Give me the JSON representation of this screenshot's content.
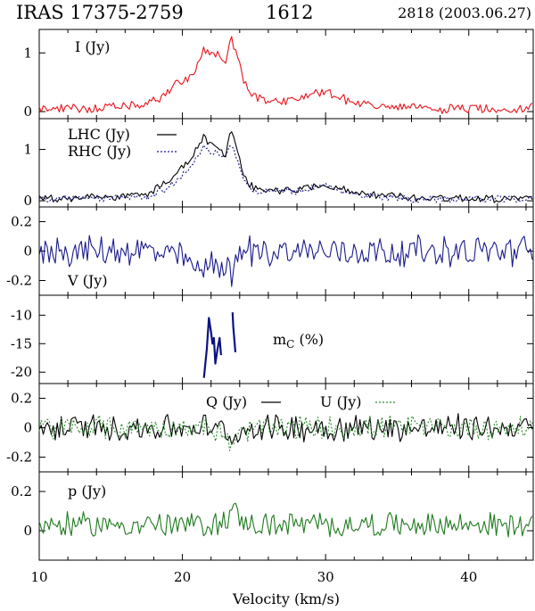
{
  "header": {
    "source": "IRAS 17375-2759",
    "frequency": "1612",
    "observation": "2818 (2003.06.27)"
  },
  "chart_data": {
    "type": "line",
    "xlabel": "Velocity (km/s)",
    "xlim": [
      10,
      44.5
    ],
    "xticks": [
      10,
      20,
      30,
      40
    ],
    "panels": [
      {
        "id": "stokes-i",
        "label": "I (Jy)",
        "ylim": [
          -0.12,
          1.4
        ],
        "yticks": [
          0,
          1
        ],
        "series": [
          {
            "label": "I (Jy)",
            "color": "#e8141c",
            "dashed": false,
            "x": [
              10.0,
              12.0,
              14.0,
              16.0,
              17.5,
              18.5,
              19.5,
              20.5,
              21.0,
              21.5,
              22.0,
              22.5,
              23.0,
              23.4,
              23.8,
              24.2,
              24.6,
              25.0,
              26.0,
              27.0,
              28.0,
              29.0,
              30.0,
              31.0,
              32.0,
              34.0,
              36.0,
              38.0,
              40.0,
              42.0,
              44.0,
              44.5
            ],
            "y": [
              0.05,
              0.05,
              0.06,
              0.08,
              0.12,
              0.25,
              0.45,
              0.6,
              0.75,
              1.05,
              0.98,
              0.95,
              0.85,
              1.25,
              0.95,
              0.6,
              0.35,
              0.25,
              0.2,
              0.18,
              0.22,
              0.3,
              0.35,
              0.25,
              0.15,
              0.08,
              0.06,
              0.05,
              0.05,
              0.05,
              0.05,
              0.1
            ]
          }
        ]
      },
      {
        "id": "circular-pol",
        "ylim": [
          -0.12,
          1.6
        ],
        "yticks": [
          0,
          1
        ],
        "legend": [
          {
            "label": "LHC (Jy)",
            "dashed": false,
            "color": "#000000"
          },
          {
            "label": "RHC (Jy)",
            "dashed": true,
            "color": "#1a1a8c"
          }
        ],
        "series": [
          {
            "label": "LHC (Jy)",
            "color": "#000000",
            "dashed": false,
            "x": [
              10.0,
              14.0,
              17.5,
              18.5,
              19.5,
              20.5,
              21.0,
              21.5,
              22.0,
              22.5,
              23.0,
              23.4,
              23.8,
              24.2,
              24.6,
              25.0,
              26.0,
              28.0,
              30.0,
              32.0,
              36.0,
              40.0,
              44.5
            ],
            "y": [
              0.05,
              0.06,
              0.12,
              0.3,
              0.5,
              0.8,
              1.0,
              1.25,
              1.1,
              1.0,
              0.85,
              1.4,
              1.0,
              0.55,
              0.3,
              0.25,
              0.22,
              0.22,
              0.32,
              0.15,
              0.06,
              0.05,
              0.05
            ]
          },
          {
            "label": "RHC (Jy)",
            "color": "#1a1a8c",
            "dashed": true,
            "x": [
              10.0,
              14.0,
              17.5,
              18.5,
              19.5,
              20.5,
              21.0,
              21.5,
              22.0,
              22.5,
              23.0,
              23.4,
              23.8,
              24.2,
              24.6,
              25.0,
              26.0,
              28.0,
              30.0,
              32.0,
              36.0,
              40.0,
              44.5
            ],
            "y": [
              0.03,
              0.04,
              0.08,
              0.2,
              0.35,
              0.65,
              0.85,
              1.05,
              0.95,
              0.9,
              0.8,
              1.1,
              0.85,
              0.45,
              0.25,
              0.2,
              0.18,
              0.18,
              0.3,
              0.12,
              0.04,
              0.03,
              0.03
            ]
          }
        ]
      },
      {
        "id": "stokes-v",
        "label": "V (Jy)",
        "ylim": [
          -0.3,
          0.3
        ],
        "yticks": [
          -0.2,
          0,
          0.2
        ],
        "yticklabels": [
          "-0.2",
          "0",
          "0.2"
        ],
        "series": [
          {
            "label": "V (Jy)",
            "color": "#1a1a8c",
            "dashed": false,
            "x": [
              10.0,
              18.0,
              20.0,
              21.0,
              21.5,
              22.0,
              22.5,
              23.0,
              23.5,
              24.0,
              25.0,
              44.5
            ],
            "y": [
              0.0,
              0.0,
              -0.05,
              -0.12,
              -0.15,
              -0.05,
              -0.1,
              -0.08,
              -0.18,
              0.0,
              0.0,
              0.0
            ]
          }
        ]
      },
      {
        "id": "circular-fraction",
        "label": "m",
        "label_sub": "C",
        "label_unit": "(%)",
        "ylim": [
          -22,
          -6.5
        ],
        "yticks": [
          -20,
          -15,
          -10
        ],
        "yticklabels": [
          "-20",
          "-15",
          "-10"
        ],
        "series": [
          {
            "label": "mC segment 1",
            "color": "#0c1280",
            "dashed": false,
            "x": [
              21.5,
              21.7,
              21.85,
              22.0,
              22.1,
              22.2,
              22.3,
              22.45,
              22.6,
              22.7
            ],
            "y": [
              -21.0,
              -16.0,
              -10.5,
              -13.0,
              -15.0,
              -14.0,
              -18.5,
              -16.0,
              -14.0,
              -17.0
            ]
          },
          {
            "label": "mC segment 2",
            "color": "#0c1280",
            "dashed": false,
            "x": [
              23.5,
              23.55,
              23.6,
              23.65,
              23.7
            ],
            "y": [
              -9.5,
              -12.0,
              -13.5,
              -15.0,
              -16.5
            ]
          }
        ]
      },
      {
        "id": "linear-pol-qu",
        "ylim": [
          -0.3,
          0.3
        ],
        "yticks": [
          -0.2,
          0,
          0.2
        ],
        "yticklabels": [
          "-0.2",
          "0",
          "0.2"
        ],
        "legend": [
          {
            "label": "Q (Jy)",
            "dashed": false,
            "color": "#000000"
          },
          {
            "label": "U (Jy)",
            "dashed": true,
            "color": "#2a8a2a"
          }
        ],
        "series": [
          {
            "label": "Q (Jy)",
            "color": "#000000",
            "dashed": false,
            "x": [
              10.0,
              22.0,
              23.0,
              23.5,
              24.0,
              25.0,
              44.5
            ],
            "y": [
              0.0,
              0.0,
              -0.03,
              -0.08,
              -0.03,
              0.0,
              0.0
            ]
          },
          {
            "label": "U (Jy)",
            "color": "#2a8a2a",
            "dashed": true,
            "x": [
              10.0,
              22.0,
              23.0,
              23.5,
              24.0,
              25.0,
              44.5
            ],
            "y": [
              0.0,
              0.0,
              -0.05,
              -0.15,
              -0.05,
              0.0,
              0.0
            ]
          }
        ]
      },
      {
        "id": "linear-pol-p",
        "label": "p (Jy)",
        "ylim": [
          -0.15,
          0.3
        ],
        "yticks": [
          0,
          0.2
        ],
        "yticklabels": [
          "0",
          "0.2"
        ],
        "series": [
          {
            "label": "p (Jy)",
            "color": "#1e7a1e",
            "dashed": false,
            "x": [
              10.0,
              22.0,
              23.0,
              23.5,
              24.0,
              25.0,
              44.5
            ],
            "y": [
              0.03,
              0.03,
              0.05,
              0.12,
              0.05,
              0.03,
              0.03
            ]
          }
        ]
      }
    ]
  }
}
